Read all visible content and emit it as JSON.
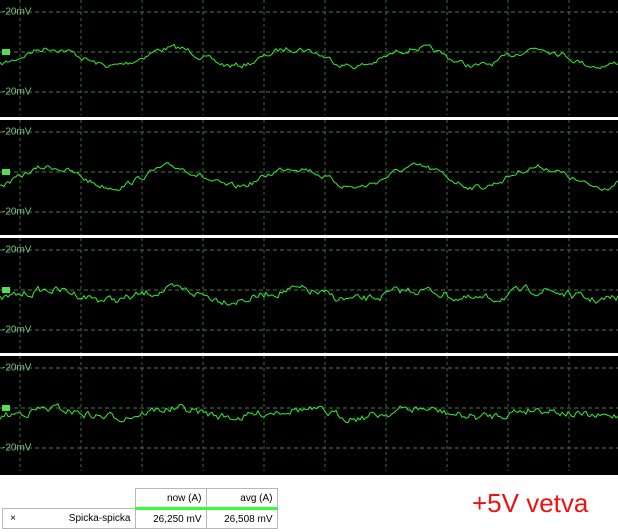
{
  "panels": [
    {
      "top_label": "-20mV",
      "bottom_label": "-20mV"
    },
    {
      "top_label": "-20mV",
      "bottom_label": "-20mV"
    },
    {
      "top_label": "-20mV",
      "bottom_label": "-20mV"
    },
    {
      "top_label": "-20mV",
      "bottom_label": "-20mV"
    }
  ],
  "table": {
    "headers": [
      "now (A)",
      "avg (A)"
    ],
    "rows": [
      [
        "×",
        "Spicka-spicka",
        "26,250 mV",
        "26,508 mV"
      ]
    ]
  },
  "caption": "+5V vetva"
}
